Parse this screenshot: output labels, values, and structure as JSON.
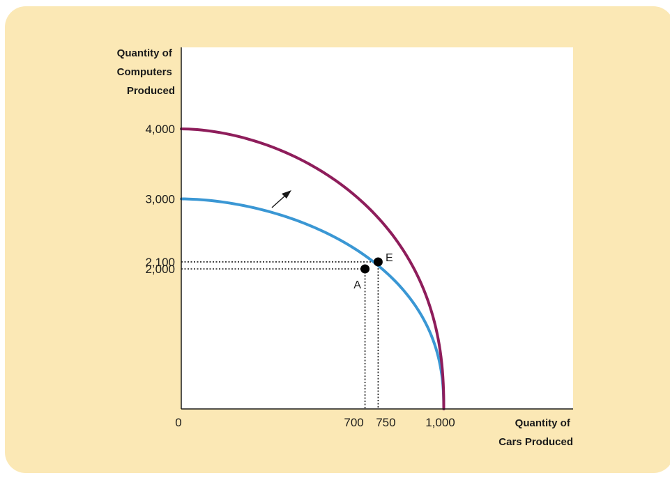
{
  "colors": {
    "panel": "#fbe8b5",
    "plot_background": "#ffffff",
    "original_frontier": "#3a97d4",
    "new_frontier": "#8e1d5b",
    "axis": "#1a1a1a"
  },
  "chart_data": {
    "type": "line",
    "title": "",
    "ylabel_lines": [
      "Quantity of",
      "Computers",
      "Produced"
    ],
    "xlabel_lines": [
      "Quantity of",
      "Cars Produced"
    ],
    "origin_label": "0",
    "xlim": [
      0,
      1500
    ],
    "ylim": [
      0,
      5000
    ],
    "x_ticks": [
      {
        "value": 700,
        "label": "700"
      },
      {
        "value": 750,
        "label": "750"
      },
      {
        "value": 1000,
        "label": "1,000"
      }
    ],
    "y_ticks": [
      {
        "value": 4000,
        "label": "4,000"
      },
      {
        "value": 3000,
        "label": "3,000"
      },
      {
        "value": 2100,
        "label": "2,100"
      },
      {
        "value": 2000,
        "label": "2,000"
      }
    ],
    "series": [
      {
        "key": "original",
        "color": "#3a97d4",
        "x": [
          0,
          1000
        ],
        "y": [
          3000,
          0
        ],
        "shape": "concave"
      },
      {
        "key": "shifted",
        "color": "#8e1d5b",
        "x": [
          0,
          1000
        ],
        "y": [
          4000,
          0
        ],
        "shape": "concave"
      }
    ],
    "points": [
      {
        "label": "A",
        "x": 700,
        "y": 2000
      },
      {
        "label": "E",
        "x": 750,
        "y": 2100
      }
    ],
    "annotations": [
      {
        "type": "arrow",
        "meaning": "outward shift of the frontier"
      }
    ],
    "grid": false,
    "legend": "none"
  }
}
